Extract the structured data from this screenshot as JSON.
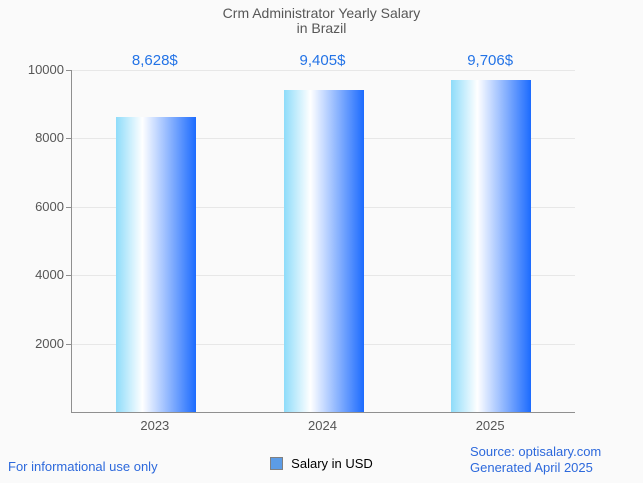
{
  "title": {
    "line1": "Crm Administrator Yearly Salary",
    "line2": "in Brazil"
  },
  "chart_data": {
    "type": "bar",
    "title": "Crm Administrator Yearly Salary in Brazil",
    "categories": [
      "2023",
      "2024",
      "2025"
    ],
    "values": [
      8628,
      9405,
      9706
    ],
    "value_labels": [
      "8,628$",
      "9,405$",
      "9,706$"
    ],
    "series": [
      {
        "name": "Salary in USD",
        "values": [
          8628,
          9405,
          9706
        ]
      }
    ],
    "xlabel": "",
    "ylabel": "",
    "ylim": [
      0,
      10000
    ],
    "yticks": [
      2000,
      4000,
      6000,
      8000,
      10000
    ],
    "grid": true,
    "legend_position": "bottom-center",
    "bar_gradient": [
      "#8EDCFA",
      "#FFFFFF",
      "#1C6BFE"
    ]
  },
  "legend": {
    "label": "Salary in USD",
    "swatch_color": "#5C9CE6"
  },
  "footer": {
    "disclaimer": "For informational use only",
    "source_line1": "Source: optisalary.com",
    "source_line2": "Generated April 2025"
  },
  "colors": {
    "background": "#FAFAFA",
    "title_text": "#575757",
    "axis_text": "#565656",
    "value_label_text": "#2373E6",
    "footer_text": "#2D69DC",
    "gridline": "#E7E7E7",
    "axis_line": "#8F8F8F"
  }
}
